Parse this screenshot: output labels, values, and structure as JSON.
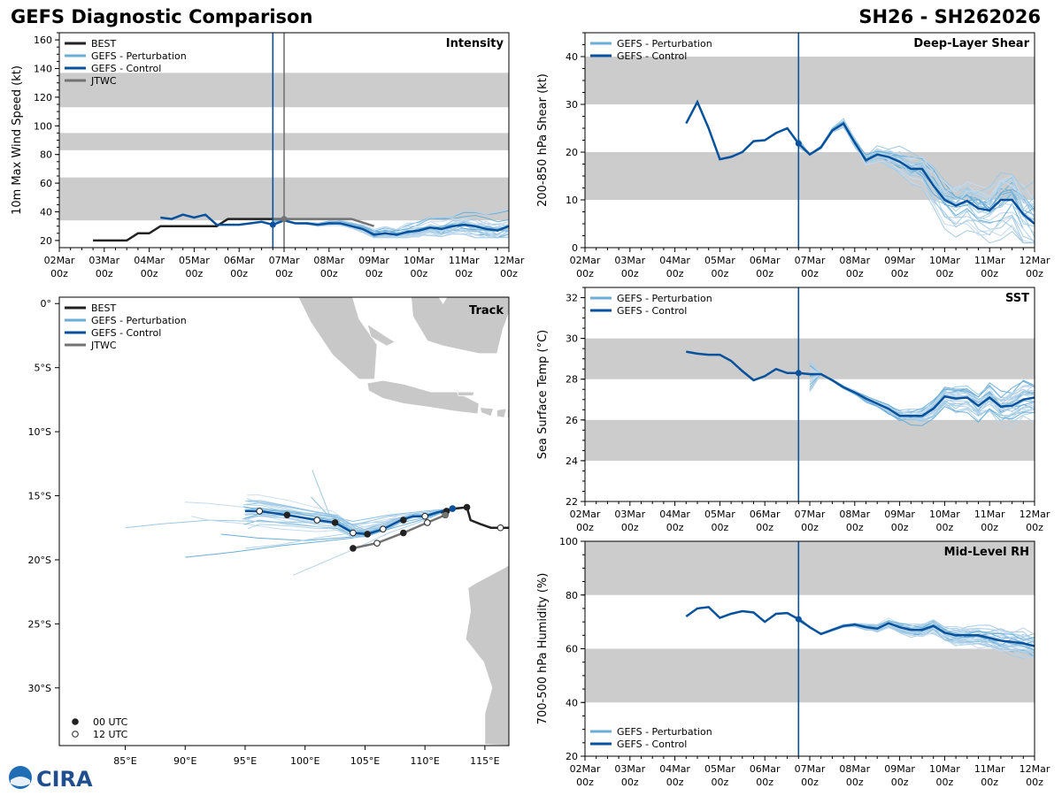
{
  "header": {
    "title": "GEFS Diagnostic Comparison",
    "storm_id": "SH26 - SH262026"
  },
  "colors": {
    "best": "#222222",
    "perturbation": "#6baed6",
    "control": "#08519c",
    "jtwc": "#737373",
    "band": "#cccccc",
    "land": "#c8c8c8",
    "vline": "#08519c",
    "vline_jtwc": "#737373"
  },
  "time_ticks": [
    "02Mar\n00z",
    "03Mar\n00z",
    "04Mar\n00z",
    "05Mar\n00z",
    "06Mar\n00z",
    "07Mar\n00z",
    "08Mar\n00z",
    "09Mar\n00z",
    "10Mar\n00z",
    "11Mar\n00z",
    "12Mar\n00z"
  ],
  "logo": {
    "text": "CIRA"
  },
  "chart_data": [
    {
      "id": "intensity",
      "type": "line",
      "title": "Intensity",
      "ylabel": "10m Max Wind Speed (kt)",
      "xlabel": "",
      "xlim": [
        0,
        10
      ],
      "ylim": [
        15,
        165
      ],
      "yticks": [
        20,
        40,
        60,
        80,
        100,
        120,
        140,
        160
      ],
      "bands": [
        [
          34,
          64
        ],
        [
          83,
          95
        ],
        [
          113,
          137
        ]
      ],
      "vlines": [
        {
          "x": 4.75,
          "kind": "control"
        },
        {
          "x": 5.0,
          "kind": "jtwc"
        }
      ],
      "legend": [
        "BEST",
        "GEFS - Perturbation",
        "GEFS - Control",
        "JTWC"
      ],
      "best": {
        "x": [
          0.75,
          1.0,
          1.25,
          1.5,
          1.75,
          2.0,
          2.25,
          2.5,
          2.75,
          3.0,
          3.25,
          3.5,
          3.75,
          4.0,
          4.25,
          4.5,
          4.75,
          5.0
        ],
        "y": [
          20,
          20,
          20,
          20,
          25,
          25,
          30,
          30,
          30,
          30,
          30,
          30,
          35,
          35,
          35,
          35,
          35,
          35
        ]
      },
      "control": {
        "x": [
          2.25,
          2.5,
          2.75,
          3.0,
          3.25,
          3.5,
          3.75,
          4.0,
          4.25,
          4.5,
          4.75,
          5.0,
          5.25,
          5.5,
          5.75,
          6.0,
          6.25,
          6.5,
          6.75,
          7.0,
          7.25,
          7.5,
          7.75,
          8.0,
          8.25,
          8.5,
          8.75,
          9.0,
          9.25,
          9.5,
          9.75,
          10.0
        ],
        "y": [
          36,
          35,
          38,
          36,
          38,
          31,
          31,
          31,
          32,
          33,
          31,
          34,
          32,
          32,
          31,
          32,
          32,
          30,
          28,
          24,
          25,
          24,
          26,
          27,
          29,
          28,
          30,
          31,
          30,
          28,
          27,
          30
        ]
      },
      "jtwc": {
        "x": [
          4.75,
          5.0,
          5.5,
          6.0,
          6.5,
          7.0
        ],
        "y": [
          35,
          35,
          35,
          35,
          35,
          30
        ]
      },
      "pert_x_start": 4.75,
      "pert_y0": 34,
      "pert_range": [
        22,
        58
      ]
    },
    {
      "id": "shear",
      "type": "line",
      "title": "Deep-Layer Shear",
      "ylabel": "200-850 hPa Shear (kt)",
      "xlabel": "",
      "xlim": [
        0,
        10
      ],
      "ylim": [
        0,
        45
      ],
      "yticks": [
        0,
        10,
        20,
        30,
        40
      ],
      "bands": [
        [
          10,
          20
        ],
        [
          30,
          40
        ]
      ],
      "vlines": [
        {
          "x": 4.75,
          "kind": "control"
        }
      ],
      "legend": [
        "GEFS - Perturbation",
        "GEFS - Control"
      ],
      "control": {
        "x": [
          2.25,
          2.5,
          2.75,
          3.0,
          3.25,
          3.5,
          3.75,
          4.0,
          4.25,
          4.5,
          4.75,
          5.0,
          5.25,
          5.5,
          5.75,
          6.0,
          6.25,
          6.5,
          6.75,
          7.0,
          7.25,
          7.5,
          7.75,
          8.0,
          8.25,
          8.5,
          8.75,
          9.0,
          9.25,
          9.5,
          9.75,
          10.0
        ],
        "y": [
          26,
          30.5,
          25,
          18.5,
          19,
          20,
          22.3,
          22.5,
          24,
          25,
          21.8,
          19.5,
          21,
          24.5,
          26,
          22,
          18.3,
          19.5,
          19,
          18,
          16.5,
          16.5,
          13,
          10,
          8.8,
          9.8,
          8.2,
          7.8,
          10,
          10,
          7,
          5
        ]
      },
      "pert_x_start": 4.75,
      "pert_y0": 22,
      "pert_range": [
        1,
        32
      ]
    },
    {
      "id": "sst",
      "type": "line",
      "title": "SST",
      "ylabel": "Sea Surface Temp (°C)",
      "xlabel": "",
      "xlim": [
        0,
        10
      ],
      "ylim": [
        22,
        32.5
      ],
      "yticks": [
        22,
        24,
        26,
        28,
        30,
        32
      ],
      "bands": [
        [
          24,
          26
        ],
        [
          28,
          30
        ]
      ],
      "vlines": [
        {
          "x": 4.75,
          "kind": "control"
        }
      ],
      "legend": [
        "GEFS - Perturbation",
        "GEFS - Control"
      ],
      "control": {
        "x": [
          2.25,
          2.5,
          2.75,
          3.0,
          3.25,
          3.5,
          3.75,
          4.0,
          4.25,
          4.5,
          4.75,
          5.0,
          5.25,
          5.5,
          5.75,
          6.0,
          6.25,
          6.5,
          6.75,
          7.0,
          7.25,
          7.5,
          7.75,
          8.0,
          8.25,
          8.5,
          8.75,
          9.0,
          9.25,
          9.5,
          9.75,
          10.0
        ],
        "y": [
          29.35,
          29.25,
          29.2,
          29.2,
          28.9,
          28.4,
          27.95,
          28.15,
          28.5,
          28.3,
          28.3,
          28.25,
          28.25,
          27.95,
          27.6,
          27.35,
          27.05,
          26.8,
          26.55,
          26.2,
          26.2,
          26.2,
          26.55,
          27.15,
          27.05,
          27.1,
          26.7,
          27.1,
          26.65,
          26.7,
          27.0,
          27.1
        ]
      },
      "pert_x_start": 5.0,
      "pert_y0": 28.3,
      "pert_range": [
        24.9,
        28.9
      ]
    },
    {
      "id": "rh",
      "type": "line",
      "title": "Mid-Level RH",
      "ylabel": "700-500 hPa Humidity (%)",
      "xlabel": "",
      "xlim": [
        0,
        10
      ],
      "ylim": [
        20,
        100
      ],
      "yticks": [
        20,
        40,
        60,
        80,
        100
      ],
      "bands": [
        [
          40,
          60
        ],
        [
          80,
          100
        ]
      ],
      "vlines": [
        {
          "x": 4.75,
          "kind": "control"
        }
      ],
      "legend": [
        "GEFS - Perturbation",
        "GEFS - Control"
      ],
      "control": {
        "x": [
          2.25,
          2.5,
          2.75,
          3.0,
          3.25,
          3.5,
          3.75,
          4.0,
          4.25,
          4.5,
          4.75,
          5.0,
          5.25,
          5.5,
          5.75,
          6.0,
          6.25,
          6.5,
          6.75,
          7.0,
          7.25,
          7.5,
          7.75,
          8.0,
          8.25,
          8.5,
          8.75,
          9.0,
          9.25,
          9.5,
          9.75,
          10.0
        ],
        "y": [
          72,
          75,
          75.5,
          71.5,
          73,
          74,
          73.5,
          70,
          73,
          73.3,
          71,
          68,
          65.5,
          67,
          68.5,
          69,
          68,
          67.5,
          69.5,
          68,
          67,
          67,
          68.5,
          66,
          65,
          65,
          65,
          64,
          63,
          62.5,
          62,
          61
        ]
      },
      "pert_x_start": 4.75,
      "pert_y0": 71,
      "pert_range": [
        52,
        74
      ]
    },
    {
      "id": "track",
      "type": "scatter",
      "title": "Track",
      "xlabel": "",
      "ylabel": "",
      "xlim": [
        79.5,
        117
      ],
      "ylim": [
        -34.5,
        0.5
      ],
      "xticks": [
        85,
        90,
        95,
        100,
        105,
        110,
        115
      ],
      "xtick_labels": [
        "85°E",
        "90°E",
        "95°E",
        "100°E",
        "105°E",
        "110°E",
        "115°E"
      ],
      "yticks": [
        0,
        -5,
        -10,
        -15,
        -20,
        -25,
        -30
      ],
      "ytick_labels": [
        "0°",
        "5°S",
        "10°S",
        "15°S",
        "20°S",
        "25°S",
        "30°S"
      ],
      "legend": [
        "BEST",
        "GEFS - Perturbation",
        "GEFS - Control",
        "JTWC"
      ],
      "marker_legend": [
        "00 UTC",
        "12 UTC"
      ],
      "best": {
        "lon": [
          117,
          115.5,
          114.6,
          113.8,
          113.5,
          112.5,
          111.8,
          111.3
        ],
        "lat": [
          -17.5,
          -17.5,
          -17.2,
          -16.9,
          -15.9,
          -16.0,
          -16.2,
          -16.3
        ]
      },
      "best_markers": {
        "lon": [
          116.3,
          113.5
        ],
        "lat": [
          -17.5,
          -15.9
        ],
        "kind": [
          "12",
          "00"
        ]
      },
      "control": {
        "lon": [
          112.3,
          111.0,
          110.0,
          109.0,
          108.0,
          106.5,
          105.2,
          104.0,
          102.5,
          101.0,
          98.5,
          96.2,
          95.0
        ],
        "lat": [
          -16.0,
          -16.3,
          -16.6,
          -16.6,
          -16.9,
          -17.6,
          -18.0,
          -17.9,
          -17.1,
          -16.9,
          -16.5,
          -16.2,
          -16.2
        ]
      },
      "control_markers": {
        "lon": [
          111.8,
          110.0,
          108.2,
          106.5,
          105.2,
          104.0,
          102.5,
          101.0,
          98.5,
          96.2
        ],
        "lat": [
          -16.2,
          -16.6,
          -16.9,
          -17.6,
          -18.0,
          -17.9,
          -17.1,
          -16.9,
          -16.5,
          -16.2
        ],
        "kind": [
          "00",
          "12",
          "00",
          "12",
          "00",
          "12",
          "00",
          "12",
          "00",
          "12"
        ]
      },
      "jtwc": {
        "lon": [
          111.7,
          110.2,
          108.2,
          106.0,
          104.0
        ],
        "lat": [
          -16.5,
          -17.1,
          -17.9,
          -18.7,
          -19.1
        ]
      },
      "jtwc_markers": {
        "lon": [
          111.7,
          110.2,
          108.2,
          106.0,
          104.0
        ],
        "lat": [
          -16.5,
          -17.1,
          -17.9,
          -18.7,
          -19.1
        ],
        "kind": [
          "00",
          "12",
          "00",
          "12",
          "00"
        ]
      },
      "pert_tracks": [
        {
          "lon": [
            112.3,
            110,
            107,
            104,
            100,
            96,
            92,
            88,
            85
          ],
          "lat": [
            -16,
            -16.6,
            -17,
            -17.2,
            -17.1,
            -17,
            -16.9,
            -17.2,
            -17.5
          ]
        },
        {
          "lon": [
            112.3,
            110,
            107,
            104,
            101,
            98,
            95,
            92,
            90
          ],
          "lat": [
            -16,
            -16.5,
            -16.8,
            -17.4,
            -17,
            -16.3,
            -15.9,
            -15.6,
            -15.5
          ]
        },
        {
          "lon": [
            112.3,
            110,
            107,
            104,
            101,
            98,
            94,
            90
          ],
          "lat": [
            -16,
            -16.8,
            -17.6,
            -18.3,
            -18.6,
            -18.9,
            -19.4,
            -19.8
          ]
        },
        {
          "lon": [
            112.3,
            110,
            107,
            104,
            101,
            99
          ],
          "lat": [
            -16,
            -16.9,
            -17.9,
            -19.2,
            -20.4,
            -21.2
          ]
        },
        {
          "lon": [
            112.3,
            110,
            107,
            104,
            102,
            100.5
          ],
          "lat": [
            -16,
            -16.3,
            -16.6,
            -17.3,
            -16.6,
            -15.1
          ]
        },
        {
          "lon": [
            112.3,
            110,
            107,
            104,
            102,
            100.6
          ],
          "lat": [
            -16,
            -16.4,
            -16.9,
            -18,
            -16.4,
            -13.0
          ]
        },
        {
          "lon": [
            112.3,
            110,
            107,
            104,
            101,
            98,
            95,
            92,
            90.5
          ],
          "lat": [
            -16,
            -16.4,
            -17,
            -17.6,
            -17.8,
            -17.6,
            -17.2,
            -16.9,
            -16.6
          ]
        },
        {
          "lon": [
            112.3,
            110,
            107,
            104,
            100,
            96,
            93
          ],
          "lat": [
            -16,
            -16.7,
            -17.3,
            -18.2,
            -18.5,
            -18.3,
            -18.0
          ]
        },
        {
          "lon": [
            112.3,
            110,
            107,
            104,
            101,
            98,
            95
          ],
          "lat": [
            -16,
            -16.5,
            -17.1,
            -17.9,
            -18.3,
            -18.8,
            -19.1
          ]
        },
        {
          "lon": [
            112.3,
            110,
            107,
            104,
            101,
            98,
            95
          ],
          "lat": [
            -16,
            -16.2,
            -16.5,
            -17.0,
            -16.4,
            -16.3,
            -16.5
          ]
        }
      ]
    }
  ]
}
